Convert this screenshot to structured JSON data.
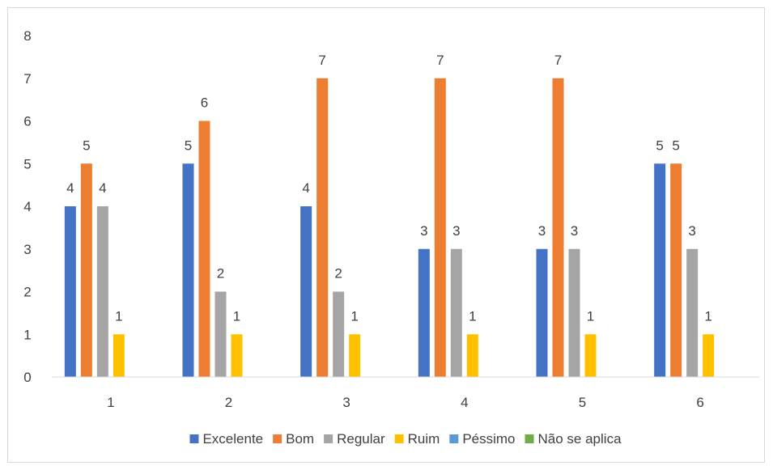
{
  "chart_data": {
    "type": "bar",
    "title": "",
    "xlabel": "",
    "ylabel": "",
    "categories": [
      "1",
      "2",
      "3",
      "4",
      "5",
      "6"
    ],
    "ylim": [
      0,
      8
    ],
    "yticks": [
      "0",
      "1",
      "2",
      "3",
      "4",
      "5",
      "6",
      "7",
      "8"
    ],
    "grid": false,
    "legend_position": "bottom",
    "series": [
      {
        "name": "Excelente",
        "color": "#4472c4",
        "values": [
          4,
          5,
          4,
          3,
          3,
          5
        ]
      },
      {
        "name": "Bom",
        "color": "#ed7d31",
        "values": [
          5,
          6,
          7,
          7,
          7,
          5
        ]
      },
      {
        "name": "Regular",
        "color": "#a5a5a5",
        "values": [
          4,
          2,
          2,
          3,
          3,
          3
        ]
      },
      {
        "name": "Ruim",
        "color": "#ffc000",
        "values": [
          1,
          1,
          1,
          1,
          1,
          1
        ]
      },
      {
        "name": "Péssimo",
        "color": "#5b9bd5",
        "values": [
          0,
          0,
          0,
          0,
          0,
          0
        ]
      },
      {
        "name": "Não se aplica",
        "color": "#70ad47",
        "values": [
          0,
          0,
          0,
          0,
          0,
          0
        ]
      }
    ]
  }
}
